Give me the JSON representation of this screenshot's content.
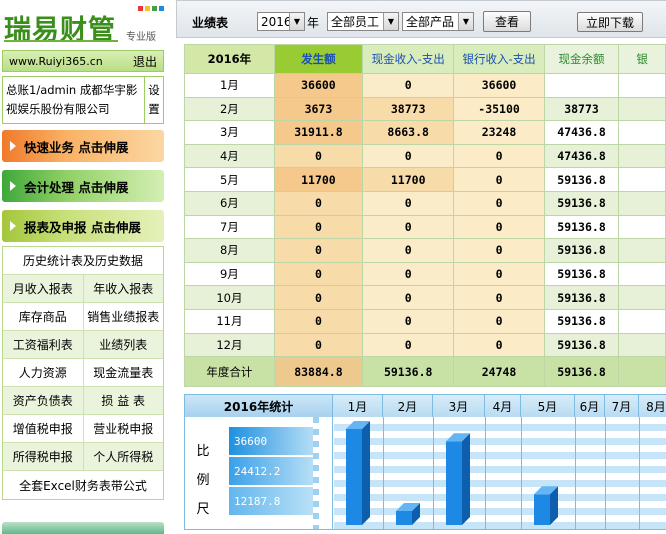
{
  "sidebar": {
    "logo": "瑞易财管",
    "edition": "专业版",
    "logo_dot_colors": [
      "#e53935",
      "#fbc02d",
      "#43a047",
      "#1e88e5"
    ],
    "url": "www.Ruiyi365.cn",
    "logout": "退出",
    "account": "总账1/admin 成都华宇影视娱乐股份有限公司",
    "settings": "设置",
    "sections": [
      {
        "label": "快速业务 点击伸展",
        "color": "orange"
      },
      {
        "label": "会计处理 点击伸展",
        "color": "green"
      },
      {
        "label": "报表及申报 点击伸展",
        "color": "lime"
      }
    ],
    "menu": [
      [
        "历史统计表及历史数据"
      ],
      [
        "月收入报表",
        "年收入报表"
      ],
      [
        "库存商品",
        "销售业绩报表"
      ],
      [
        "工资福利表",
        "业绩列表"
      ],
      [
        "人力资源",
        "现金流量表"
      ],
      [
        "资产负债表",
        "损 益 表"
      ],
      [
        "增值税申报",
        "营业税申报"
      ],
      [
        "所得税申报",
        "个人所得税"
      ],
      [
        "全套Excel财务表带公式"
      ]
    ]
  },
  "toolbar": {
    "title": "业绩表",
    "year_value": "2016",
    "year_suffix": "年",
    "staff_value": "全部员工",
    "product_value": "全部产品",
    "query": "查看",
    "download": "立即下载"
  },
  "table": {
    "headers": [
      "2016年",
      "发生额",
      "现金收入-支出",
      "银行收入-支出",
      "现金余额",
      "银"
    ],
    "rows": [
      {
        "month": "1月",
        "fs": "36600",
        "cash": "0",
        "bank": "36600",
        "bal": "",
        "extra": ""
      },
      {
        "month": "2月",
        "fs": "3673",
        "cash": "38773",
        "bank": "-35100",
        "bal": "38773",
        "extra": ""
      },
      {
        "month": "3月",
        "fs": "31911.8",
        "cash": "8663.8",
        "bank": "23248",
        "bal": "47436.8",
        "extra": ""
      },
      {
        "month": "4月",
        "fs": "0",
        "cash": "0",
        "bank": "0",
        "bal": "47436.8",
        "extra": ""
      },
      {
        "month": "5月",
        "fs": "11700",
        "cash": "11700",
        "bank": "0",
        "bal": "59136.8",
        "extra": ""
      },
      {
        "month": "6月",
        "fs": "0",
        "cash": "0",
        "bank": "0",
        "bal": "59136.8",
        "extra": ""
      },
      {
        "month": "7月",
        "fs": "0",
        "cash": "0",
        "bank": "0",
        "bal": "59136.8",
        "extra": ""
      },
      {
        "month": "8月",
        "fs": "0",
        "cash": "0",
        "bank": "0",
        "bal": "59136.8",
        "extra": ""
      },
      {
        "month": "9月",
        "fs": "0",
        "cash": "0",
        "bank": "0",
        "bal": "59136.8",
        "extra": ""
      },
      {
        "month": "10月",
        "fs": "0",
        "cash": "0",
        "bank": "0",
        "bal": "59136.8",
        "extra": ""
      },
      {
        "month": "11月",
        "fs": "0",
        "cash": "0",
        "bank": "0",
        "bal": "59136.8",
        "extra": ""
      },
      {
        "month": "12月",
        "fs": "0",
        "cash": "0",
        "bank": "0",
        "bal": "59136.8",
        "extra": ""
      }
    ],
    "total": {
      "month": "年度合计",
      "fs": "83884.8",
      "cash": "59136.8",
      "bank": "24748",
      "bal": "59136.8",
      "extra": ""
    }
  },
  "chart_data": {
    "type": "bar",
    "title": "2016年统计",
    "scale_label": [
      "比",
      "例",
      "尺"
    ],
    "scale_values": [
      "36600",
      "24412.2",
      "12187.8"
    ],
    "categories": [
      "1月",
      "2月",
      "3月",
      "4月",
      "5月",
      "6月",
      "7月",
      "8月"
    ],
    "values": [
      36600,
      3673,
      31911.8,
      0,
      11700,
      0,
      0,
      0
    ],
    "ylim": [
      0,
      36600
    ],
    "colors": {
      "bar_front": "#1e88e5",
      "bar_side": "#0d5fae",
      "bar_top": "#64b5f6"
    }
  }
}
